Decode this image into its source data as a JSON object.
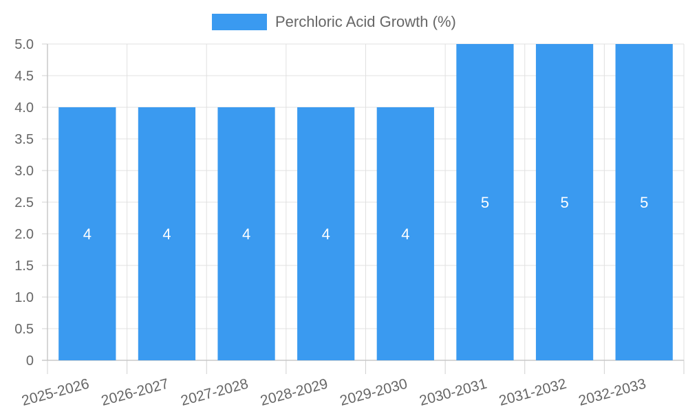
{
  "chart_data": {
    "type": "bar",
    "title": "",
    "xlabel": "",
    "ylabel": "",
    "categories": [
      "2025-2026",
      "2026-2027",
      "2027-2028",
      "2028-2029",
      "2029-2030",
      "2030-2031",
      "2031-2032",
      "2032-2033"
    ],
    "series": [
      {
        "name": "Perchloric Acid Growth (%)",
        "values": [
          4,
          4,
          4,
          4,
          4,
          5,
          5,
          5
        ],
        "color": "#3a9af0"
      }
    ],
    "data_labels": [
      "4",
      "4",
      "4",
      "4",
      "4",
      "5",
      "5",
      "5"
    ],
    "ylim": [
      0,
      5
    ],
    "y_ticks": [
      0,
      0.5,
      1,
      1.5,
      2,
      2.5,
      3,
      3.5,
      4,
      4.5,
      5
    ],
    "y_tick_labels": [
      "0",
      "0.5",
      "1.0",
      "1.5",
      "2.0",
      "2.5",
      "3.0",
      "3.5",
      "4.0",
      "4.5",
      "5.0"
    ],
    "grid": true,
    "legend_position": "top-center"
  }
}
